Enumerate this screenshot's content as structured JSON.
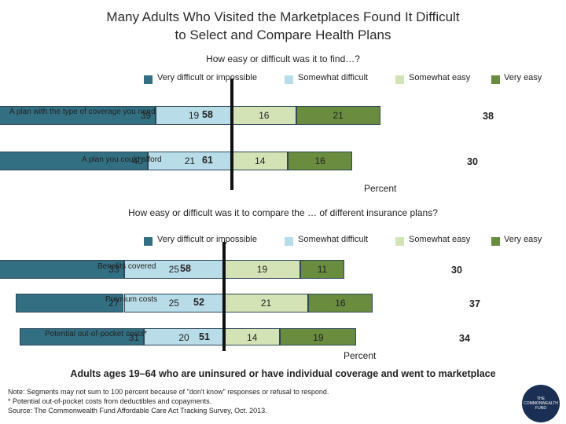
{
  "title_line1": "Many Adults Who Visited the Marketplaces Found It Difficult",
  "title_line2": "to Select and Compare Health Plans",
  "colors": {
    "very_difficult": "#336f82",
    "somewhat_difficult": "#b9dde8",
    "somewhat_easy": "#d3e3b6",
    "very_easy": "#6a8c3f"
  },
  "chart_data": [
    {
      "type": "bar",
      "subtype": "diverging-stacked",
      "title": "How easy or difficult was it to find…?",
      "xlabel": "Percent",
      "legend": [
        "Very difficult or impossible",
        "Somewhat difficult",
        "Somewhat easy",
        "Very easy"
      ],
      "categories": [
        "A plan with the type of coverage you need",
        "A plan you could afford"
      ],
      "series": [
        {
          "name": "Very difficult or impossible",
          "values": [
            39,
            40
          ]
        },
        {
          "name": "Somewhat difficult",
          "values": [
            19,
            21
          ]
        },
        {
          "name": "Somewhat easy",
          "values": [
            16,
            14
          ]
        },
        {
          "name": "Very easy",
          "values": [
            21,
            16
          ]
        }
      ],
      "difficult_totals": [
        58,
        61
      ],
      "easy_totals": [
        38,
        30
      ]
    },
    {
      "type": "bar",
      "subtype": "diverging-stacked",
      "title": "How easy or difficult was it to compare the … of different insurance plans?",
      "xlabel": "Percent",
      "legend": [
        "Very difficult or impossible",
        "Somewhat difficult",
        "Somewhat easy",
        "Very easy"
      ],
      "categories": [
        "Benefits covered",
        "Premium costs",
        "Potential out-of-pocket costs*"
      ],
      "series": [
        {
          "name": "Very difficult or impossible",
          "values": [
            33,
            27,
            31
          ]
        },
        {
          "name": "Somewhat difficult",
          "values": [
            25,
            25,
            20
          ]
        },
        {
          "name": "Somewhat easy",
          "values": [
            19,
            21,
            14
          ]
        },
        {
          "name": "Very easy",
          "values": [
            11,
            16,
            19
          ]
        }
      ],
      "difficult_totals": [
        58,
        52,
        51
      ],
      "easy_totals": [
        30,
        37,
        34
      ]
    }
  ],
  "footer": "Adults ages 19–64 who are uninsured or have individual coverage and went to marketplace",
  "notes": [
    "Note: Segments may not sum to 100 percent because of \"don't know\" responses or refusal to respond.",
    "* Potential out-of-pocket costs from deductibles and copayments.",
    "Source: The Commonwealth Fund Affordable Care Act Tracking Survey, Oct. 2013."
  ],
  "logo_text": "THE COMMONWEALTH FUND"
}
